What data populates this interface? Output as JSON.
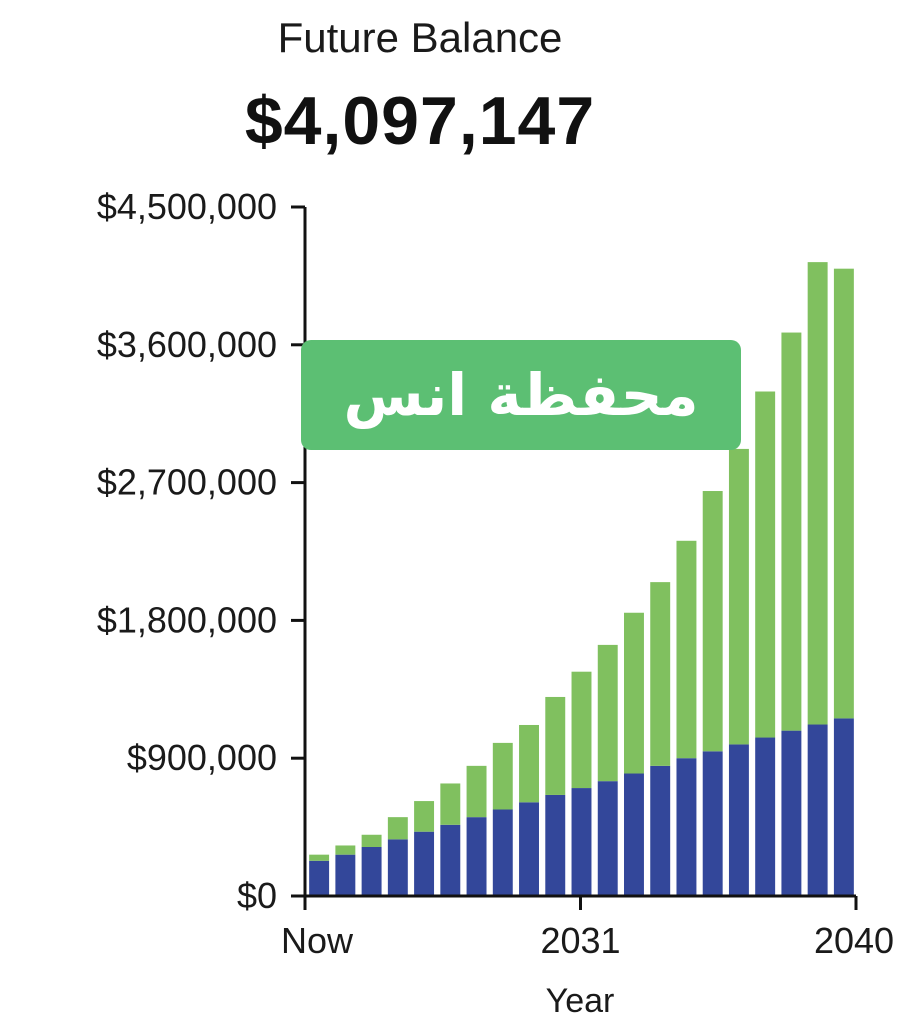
{
  "header": {
    "title": "Future Balance",
    "value": "$4,097,147"
  },
  "watermark": {
    "text": "محفظة انس",
    "color": "#5cbf73"
  },
  "colors": {
    "principal": "#33479a",
    "growth": "#80c05f",
    "axis": "#111111"
  },
  "chart_data": {
    "type": "bar",
    "stacked": true,
    "title": "",
    "xlabel": "Year",
    "ylabel": "",
    "ylim": [
      0,
      4500000
    ],
    "y_ticks": [
      0,
      900000,
      1800000,
      2700000,
      3600000,
      4500000
    ],
    "y_tick_labels": [
      "$0",
      "$900,000",
      "$1,800,000",
      "$2,700,000",
      "$3,600,000",
      "$4,500,000"
    ],
    "x_tick_labels": [
      {
        "index": 0,
        "label": "Now"
      },
      {
        "index": 10,
        "label": "2031"
      },
      {
        "index": 20,
        "label": "2040"
      }
    ],
    "categories": [
      "Now",
      "",
      "",
      "",
      "",
      "",
      "",
      "",
      "",
      "",
      "2031",
      "",
      "",
      "",
      "",
      "",
      "",
      "",
      "",
      "",
      "2040"
    ],
    "series": [
      {
        "values": [
          230000,
          270000,
          320000,
          370000,
          420000,
          465000,
          515000,
          565000,
          612000,
          660000,
          705000,
          750000,
          800000,
          850000,
          900000,
          945000,
          990000,
          1035000,
          1080000,
          1120000,
          1160000
        ]
      },
      {
        "values": [
          40000,
          60000,
          80000,
          145000,
          200000,
          270000,
          335000,
          435000,
          505000,
          640000,
          760000,
          890000,
          1050000,
          1200000,
          1420000,
          1700000,
          1930000,
          2260000,
          2600000,
          3020000,
          2937147
        ]
      }
    ]
  }
}
